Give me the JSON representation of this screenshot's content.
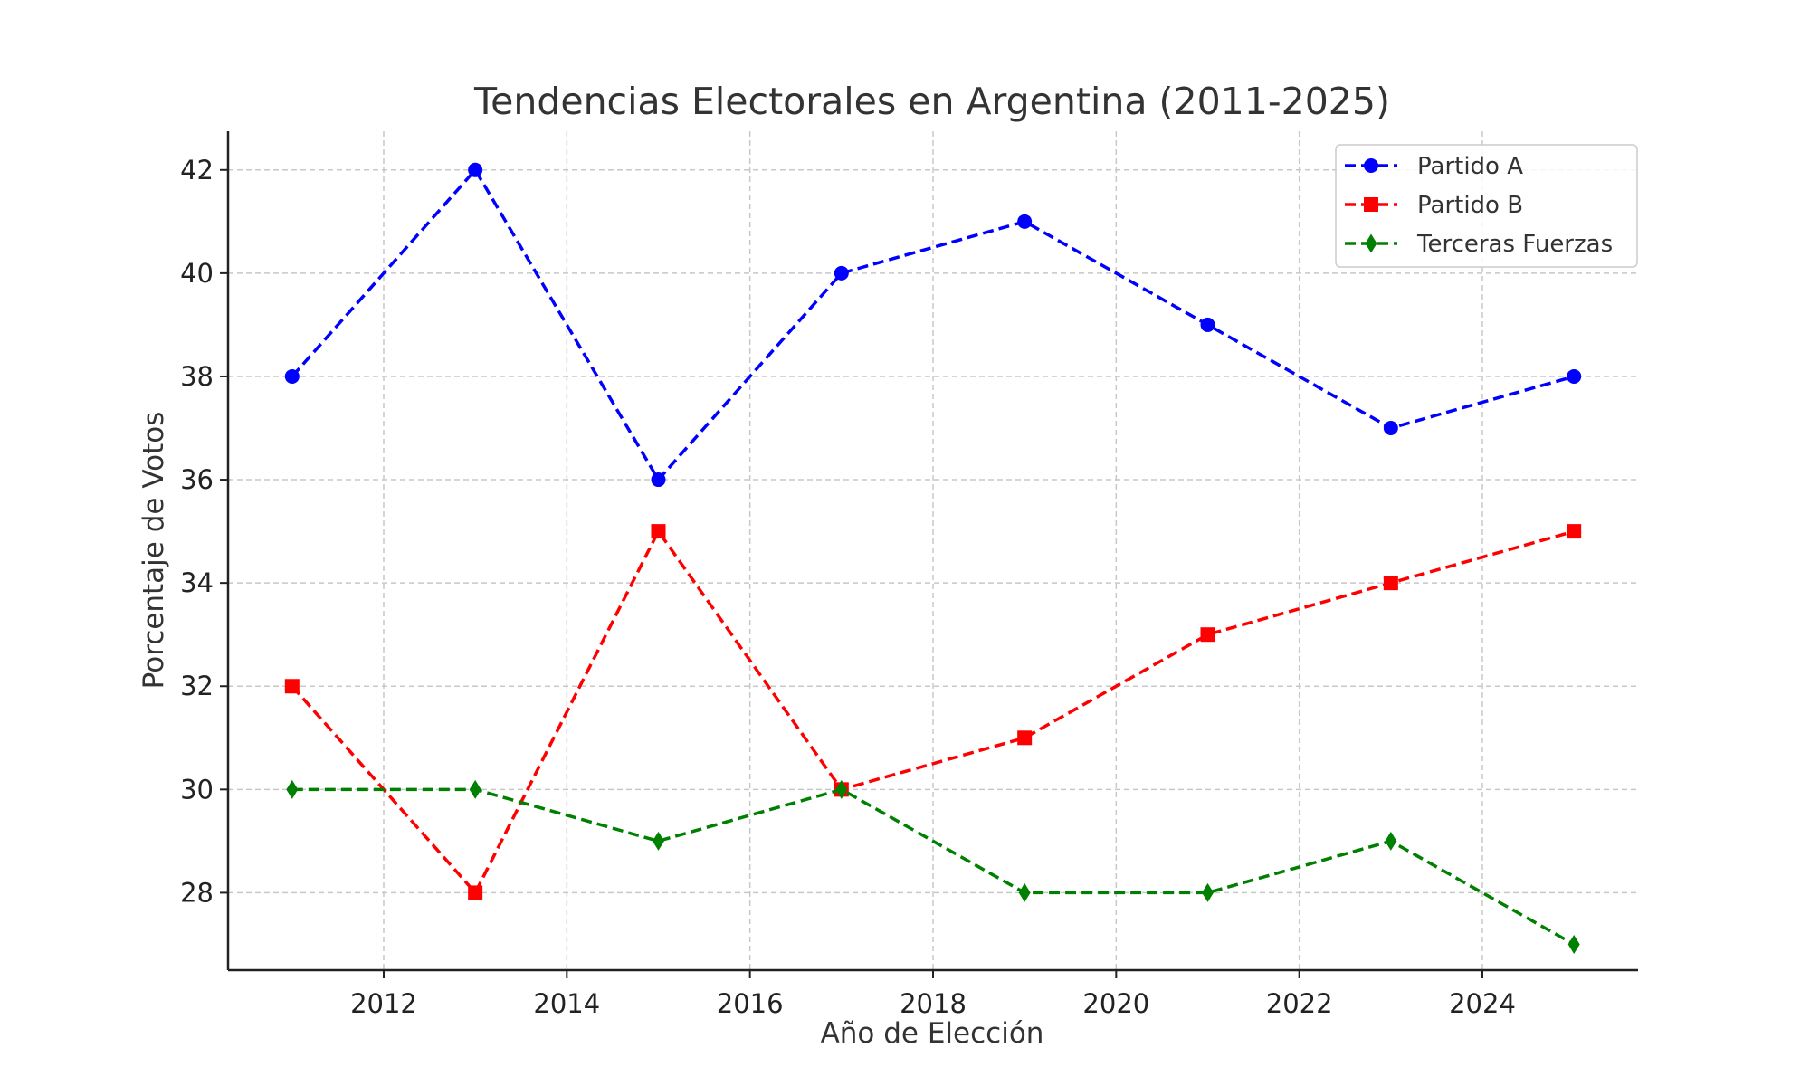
{
  "chart_data": {
    "type": "line",
    "title": "Tendencias Electorales en Argentina (2011-2025)",
    "xlabel": "Año de Elección",
    "ylabel": "Porcentaje de Votos",
    "x": [
      2011,
      2013,
      2015,
      2017,
      2019,
      2021,
      2023,
      2025
    ],
    "xlim": [
      2010.3,
      2025.7
    ],
    "ylim": [
      26.5,
      42.75
    ],
    "xticks": [
      2012,
      2014,
      2016,
      2018,
      2020,
      2022,
      2024
    ],
    "yticks": [
      28,
      30,
      32,
      34,
      36,
      38,
      40,
      42
    ],
    "grid": true,
    "grid_style": "dashed",
    "legend_position": "top-right",
    "series": [
      {
        "name": "Partido A",
        "color": "#0000ff",
        "marker": "circle",
        "line_style": "dashed",
        "values": [
          38,
          42,
          36,
          40,
          41,
          39,
          37,
          38
        ]
      },
      {
        "name": "Partido B",
        "color": "#ff0000",
        "marker": "square",
        "line_style": "dashed",
        "values": [
          32,
          28,
          35,
          30,
          31,
          33,
          34,
          35
        ]
      },
      {
        "name": "Terceras Fuerzas",
        "color": "#008000",
        "marker": "thin-diamond",
        "line_style": "dashed",
        "values": [
          30,
          30,
          29,
          30,
          28,
          28,
          29,
          27
        ]
      }
    ]
  }
}
